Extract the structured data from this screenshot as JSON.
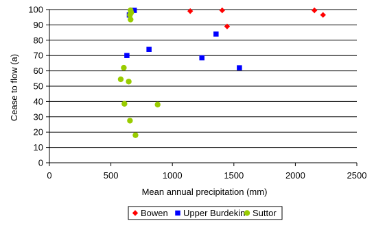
{
  "chart_data": {
    "type": "scatter",
    "xlabel": "Mean annual precipitation (mm)",
    "ylabel": "Cease to flow (a)",
    "xlim": [
      0,
      2500
    ],
    "ylim": [
      0,
      100
    ],
    "xticks": [
      0,
      500,
      1000,
      1500,
      2000,
      2500
    ],
    "yticks": [
      0,
      10,
      20,
      30,
      40,
      50,
      60,
      70,
      80,
      90,
      100
    ],
    "grid": "horizontal",
    "legend_position": "bottom",
    "series": [
      {
        "name": "Bowen",
        "marker": "diamond",
        "color": "#ff0000",
        "points": [
          {
            "x": 1145,
            "y": 99
          },
          {
            "x": 1405,
            "y": 99.5
          },
          {
            "x": 1445,
            "y": 89
          },
          {
            "x": 2155,
            "y": 99.5
          },
          {
            "x": 2225,
            "y": 96.5
          }
        ]
      },
      {
        "name": "Upper Burdekin",
        "marker": "square",
        "color": "#0000ff",
        "points": [
          {
            "x": 690,
            "y": 99.5
          },
          {
            "x": 650,
            "y": 96.5
          },
          {
            "x": 630,
            "y": 70
          },
          {
            "x": 810,
            "y": 74
          },
          {
            "x": 1240,
            "y": 68.5
          },
          {
            "x": 1355,
            "y": 84
          },
          {
            "x": 1545,
            "y": 62
          }
        ]
      },
      {
        "name": "Suttor",
        "marker": "circle",
        "color": "#99cc00",
        "points": [
          {
            "x": 660,
            "y": 99.5
          },
          {
            "x": 665,
            "y": 98
          },
          {
            "x": 655,
            "y": 96.5
          },
          {
            "x": 660,
            "y": 93.5
          },
          {
            "x": 605,
            "y": 62
          },
          {
            "x": 580,
            "y": 54.5
          },
          {
            "x": 645,
            "y": 53
          },
          {
            "x": 610,
            "y": 38.5
          },
          {
            "x": 880,
            "y": 38
          },
          {
            "x": 655,
            "y": 27.5
          },
          {
            "x": 700,
            "y": 18
          }
        ]
      }
    ]
  }
}
